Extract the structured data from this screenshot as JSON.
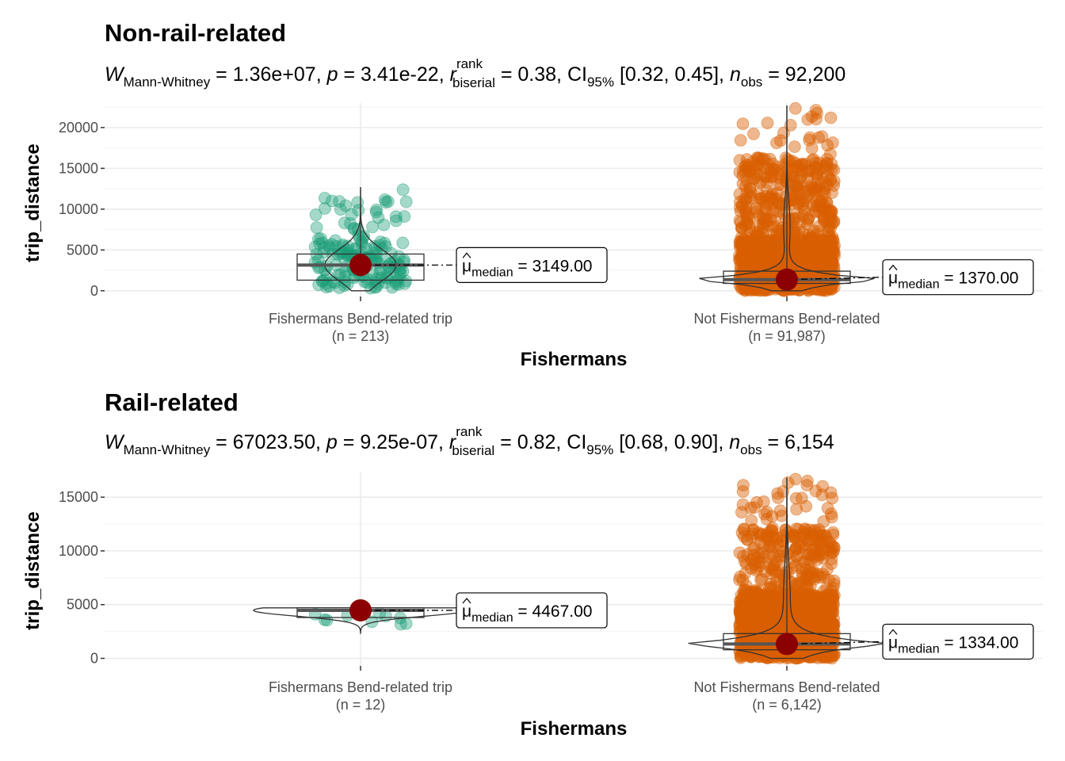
{
  "chart_data": [
    {
      "type": "violin-box-scatter",
      "title": "Non-rail-related",
      "subtitle": {
        "stat_symbol": "W",
        "stat_subscript": "Mann-Whitney",
        "stat_value": "1.36e+07",
        "p_symbol": "p",
        "p_value": "3.41e-22",
        "effect_symbol": "r",
        "effect_superscript": "rank",
        "effect_subscript": "biserial",
        "effect_value": "0.38",
        "ci_symbol": "CI",
        "ci_subscript": "95%",
        "ci_value": "[0.32, 0.45]",
        "n_symbol": "n",
        "n_subscript": "obs",
        "n_value": "92,200"
      },
      "xlabel": "Fishermans",
      "ylabel": "trip_distance",
      "ylim": [
        -700,
        23000
      ],
      "yticks": [
        0,
        5000,
        10000,
        15000,
        20000
      ],
      "grid": true,
      "groups": [
        {
          "category": "Fishermans Bend-related trip",
          "n_label": "(n = 213)",
          "color": "#1B9E77",
          "median": 3149,
          "q1": 1300,
          "q3": 4500,
          "whisker_low": 0,
          "whisker_high": 9500,
          "max": 12700,
          "median_label_symbol": "μ",
          "median_label_subscript": "median",
          "median_label_value": "3149.00"
        },
        {
          "category": "Not Fishermans Bend-related",
          "n_label": "(n = 91,987)",
          "color": "#D95F02",
          "median": 1370,
          "q1": 900,
          "q3": 2400,
          "whisker_low": 0,
          "whisker_high": 4800,
          "max": 22700,
          "median_label_symbol": "μ",
          "median_label_subscript": "median",
          "median_label_value": "1370.00"
        }
      ]
    },
    {
      "type": "violin-box-scatter",
      "title": "Rail-related",
      "subtitle": {
        "stat_symbol": "W",
        "stat_subscript": "Mann-Whitney",
        "stat_value": "67023.50",
        "p_symbol": "p",
        "p_value": "9.25e-07",
        "effect_symbol": "r",
        "effect_superscript": "rank",
        "effect_subscript": "biserial",
        "effect_value": "0.82",
        "ci_symbol": "CI",
        "ci_subscript": "95%",
        "ci_value": "[0.68, 0.90]",
        "n_symbol": "n",
        "n_subscript": "obs",
        "n_value": "6,154"
      },
      "xlabel": "Fishermans",
      "ylabel": "trip_distance",
      "ylim": [
        -700,
        17300
      ],
      "yticks": [
        0,
        5000,
        10000,
        15000
      ],
      "grid": true,
      "groups": [
        {
          "category": "Fishermans Bend-related trip",
          "n_label": "(n = 12)",
          "color": "#1B9E77",
          "median": 4467,
          "q1": 3800,
          "q3": 4700,
          "whisker_low": 3000,
          "whisker_high": 4700,
          "max": 4700,
          "median_label_symbol": "μ",
          "median_label_subscript": "median",
          "median_label_value": "4467.00"
        },
        {
          "category": "Not Fishermans Bend-related",
          "n_label": "(n = 6,142)",
          "color": "#D95F02",
          "median": 1334,
          "q1": 800,
          "q3": 2300,
          "whisker_low": 0,
          "whisker_high": 4500,
          "max": 16800,
          "median_label_symbol": "μ",
          "median_label_subscript": "median",
          "median_label_value": "1334.00"
        }
      ]
    }
  ]
}
